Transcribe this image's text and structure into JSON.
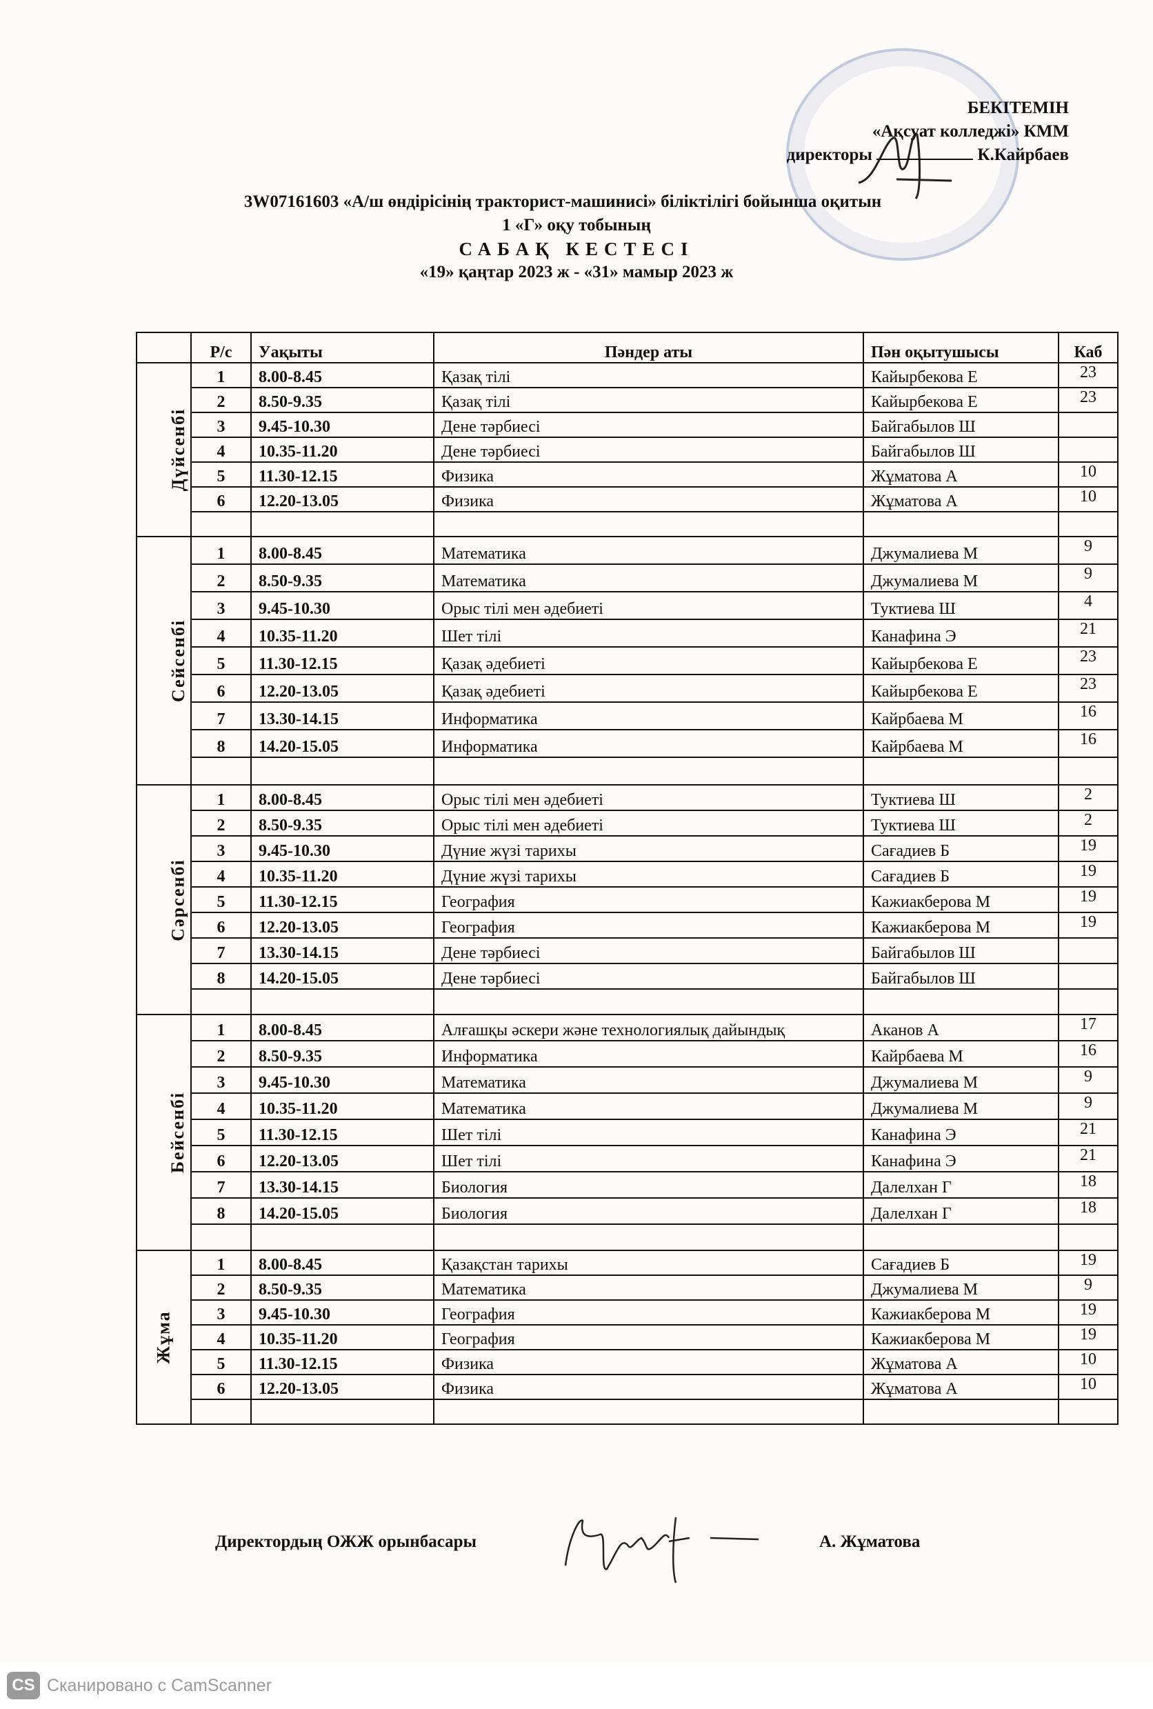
{
  "approval": {
    "line1": "БЕКІТЕМІН",
    "line2": "«Ақсуат колледжі» КММ",
    "line3_role": "директоры",
    "line3_name": "К.Кайрбаев",
    "stamp_text": "«Ақсуат колледжі» КММ"
  },
  "title": {
    "line1": "3W07161603  «А/ш өндірісінің тракторист-машинисі» біліктілігі бойынша оқитын",
    "line2": "1 «Г»  оқу тобының",
    "line3": "САБАҚ  КЕСТЕСІ",
    "line4": "«19» қаңтар 2023 ж -  «31» мамыр   2023 ж"
  },
  "table": {
    "headers": [
      "",
      "Р/с",
      "Уақыты",
      "Пәндер аты",
      "Пән оқытушысы",
      "Каб"
    ],
    "days": [
      {
        "name": "Дүйсенбі",
        "rows": [
          [
            "1",
            "8.00-8.45",
            "Қазақ тілі",
            "Кайырбекова Е",
            "23"
          ],
          [
            "2",
            "8.50-9.35",
            "Қазақ тілі",
            "Кайырбекова Е",
            "23"
          ],
          [
            "3",
            "9.45-10.30",
            "Дене тәрбиесі",
            "Байгабылов Ш",
            ""
          ],
          [
            "4",
            "10.35-11.20",
            "Дене тәрбиесі",
            "Байгабылов Ш",
            ""
          ],
          [
            "5",
            "11.30-12.15",
            "Физика",
            "Жұматова А",
            "10"
          ],
          [
            "6",
            "12.20-13.05",
            "Физика",
            "Жұматова А",
            "10"
          ]
        ]
      },
      {
        "name": "Сейсенбі",
        "rows": [
          [
            "1",
            "8.00-8.45",
            "Математика",
            "Джумалиева М",
            "9"
          ],
          [
            "2",
            "8.50-9.35",
            "Математика",
            "Джумалиева М",
            "9"
          ],
          [
            "3",
            "9.45-10.30",
            "Орыс тілі мен әдебиеті",
            "Туктиева Ш",
            "4"
          ],
          [
            "4",
            "10.35-11.20",
            "Шет тілі",
            "Канафина Э",
            "21"
          ],
          [
            "5",
            "11.30-12.15",
            "Қазақ әдебиеті",
            "Кайырбекова Е",
            "23"
          ],
          [
            "6",
            "12.20-13.05",
            "Қазақ әдебиеті",
            "Кайырбекова Е",
            "23"
          ],
          [
            "7",
            "13.30-14.15",
            "Информатика",
            "Кайрбаева М",
            "16"
          ],
          [
            "8",
            "14.20-15.05",
            "Информатика",
            "Кайрбаева М",
            "16"
          ]
        ]
      },
      {
        "name": "Сәрсенбі",
        "rows": [
          [
            "1",
            "8.00-8.45",
            "Орыс тілі мен әдебиеті",
            "Туктиева Ш",
            "2"
          ],
          [
            "2",
            "8.50-9.35",
            "Орыс тілі мен әдебиеті",
            "Туктиева Ш",
            "2"
          ],
          [
            "3",
            "9.45-10.30",
            "Дүние жүзі тарихы",
            "Сағадиев Б",
            "19"
          ],
          [
            "4",
            "10.35-11.20",
            "Дүние жүзі тарихы",
            "Сағадиев Б",
            "19"
          ],
          [
            "5",
            "11.30-12.15",
            "География",
            "Кажиакберова М",
            "19"
          ],
          [
            "6",
            "12.20-13.05",
            "География",
            "Кажиакберова М",
            "19"
          ],
          [
            "7",
            "13.30-14.15",
            "Дене тәрбиесі",
            "Байгабылов Ш",
            ""
          ],
          [
            "8",
            "14.20-15.05",
            "Дене тәрбиесі",
            "Байгабылов Ш",
            ""
          ]
        ]
      },
      {
        "name": "Бейсенбі",
        "rows": [
          [
            "1",
            "8.00-8.45",
            "Алғашқы әскери және технологиялық дайындық",
            "Аканов А",
            "17"
          ],
          [
            "2",
            "8.50-9.35",
            "Информатика",
            "Кайрбаева М",
            "16"
          ],
          [
            "3",
            "9.45-10.30",
            "Математика",
            "Джумалиева М",
            "9"
          ],
          [
            "4",
            "10.35-11.20",
            "Математика",
            "Джумалиева М",
            "9"
          ],
          [
            "5",
            "11.30-12.15",
            "Шет тілі",
            "Канафина Э",
            "21"
          ],
          [
            "6",
            "12.20-13.05",
            "Шет тілі",
            "Канафина Э",
            "21"
          ],
          [
            "7",
            "13.30-14.15",
            "Биология",
            "Далелхан Г",
            "18"
          ],
          [
            "8",
            "14.20-15.05",
            "Биология",
            "Далелхан Г",
            "18"
          ]
        ]
      },
      {
        "name": "Жұма",
        "rows": [
          [
            "1",
            "8.00-8.45",
            "Қазақстан тарихы",
            "Сағадиев Б",
            "19"
          ],
          [
            "2",
            "8.50-9.35",
            "Математика",
            "Джумалиева М",
            "9"
          ],
          [
            "3",
            "9.45-10.30",
            "География",
            "Кажиакберова М",
            "19"
          ],
          [
            "4",
            "10.35-11.20",
            "География",
            "Кажиакберова М",
            "19"
          ],
          [
            "5",
            "11.30-12.15",
            "Физика",
            "Жұматова А",
            "10"
          ],
          [
            "6",
            "12.20-13.05",
            "Физика",
            "Жұматова А",
            "10"
          ]
        ]
      }
    ]
  },
  "footer": {
    "role": "Директордың ОЖЖ орынбасары",
    "name": "А. Жұматова"
  },
  "scanner": {
    "logo": "CS",
    "text": "Сканировано с CamScanner"
  }
}
